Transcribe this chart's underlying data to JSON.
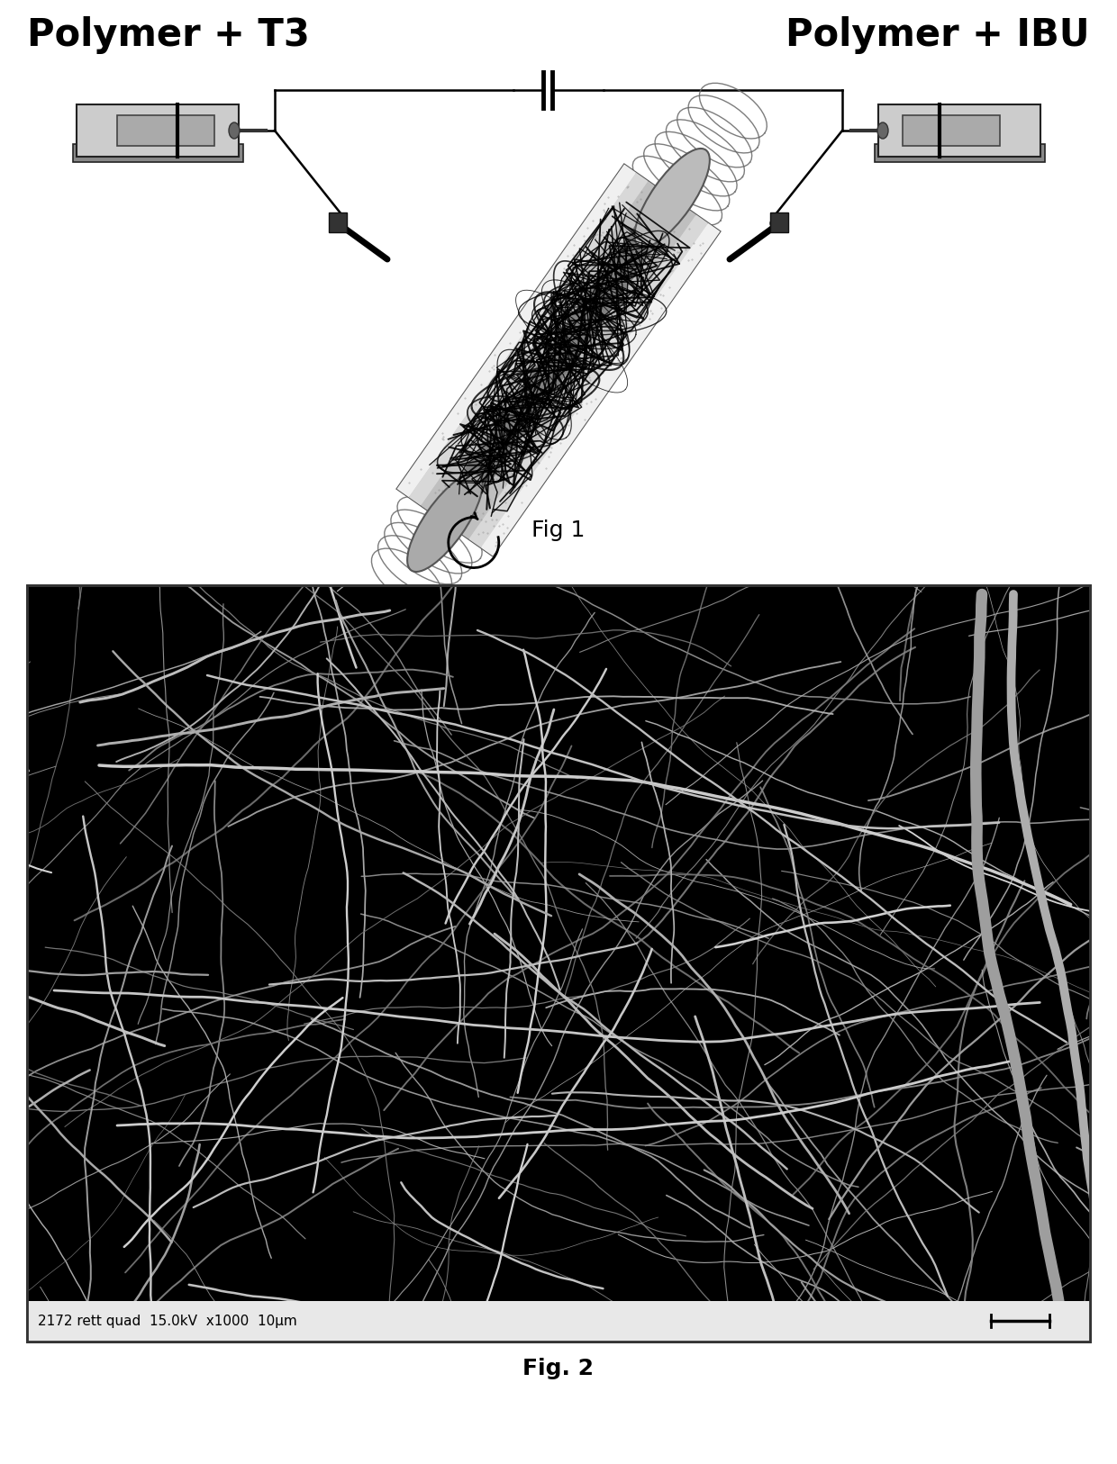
{
  "title_left": "Polymer + T3",
  "title_right": "Polymer + IBU",
  "fig1_caption": "Fig 1",
  "fig2_caption": "Fig. 2",
  "fig2_scale_text": "2172 rett quad  15.0kV  x1000  10μm",
  "bg_color": "#ffffff",
  "text_color": "#000000",
  "title_fontsize": 30,
  "caption_fontsize": 18,
  "sem_label_fontsize": 11
}
